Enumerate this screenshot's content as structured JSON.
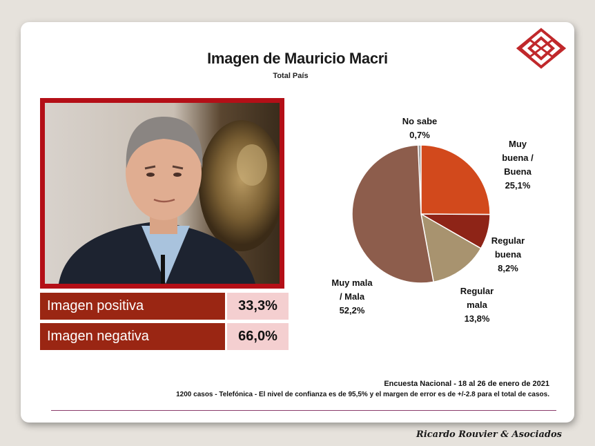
{
  "header": {
    "title": "Imagen de Mauricio  Macri",
    "subtitle": "Total País"
  },
  "summary": {
    "positive_label": "Imagen positiva",
    "positive_value": "33,3%",
    "negative_label": "Imagen negativa",
    "negative_value": "66,0%"
  },
  "chart_data": {
    "type": "pie",
    "title": "",
    "slices": [
      {
        "label": [
          "No sabe",
          "0,7%"
        ],
        "value": 0.7,
        "color": "#9e9e9e"
      },
      {
        "label": [
          "Muy",
          "buena /",
          "Buena",
          "25,1%"
        ],
        "value": 25.1,
        "color": "#d2491c"
      },
      {
        "label": [
          "Regular",
          "buena",
          "8,2%"
        ],
        "value": 8.2,
        "color": "#8e2417"
      },
      {
        "label": [
          "Regular",
          "mala",
          "13,8%"
        ],
        "value": 13.8,
        "color": "#a8936f"
      },
      {
        "label": [
          "Muy mala",
          "/ Mala",
          "52,2%"
        ],
        "value": 52.2,
        "color": "#8d5d4c"
      }
    ]
  },
  "footer": {
    "source_line1": "Encuesta Nacional  -  18 al 26 de enero de 2021",
    "source_line2": "1200 casos  -  Telefónica    -  El  nivel  de  confianza  es  de  95,5% y el margen  de  error  es de  +/-2.8  para  el  total  de  casos.",
    "brand": "Ricardo Rouvier & Asociados"
  },
  "colors": {
    "frame_red": "#b40f17",
    "label_bg": "#9a2613",
    "value_bg": "#f4cfd0"
  }
}
